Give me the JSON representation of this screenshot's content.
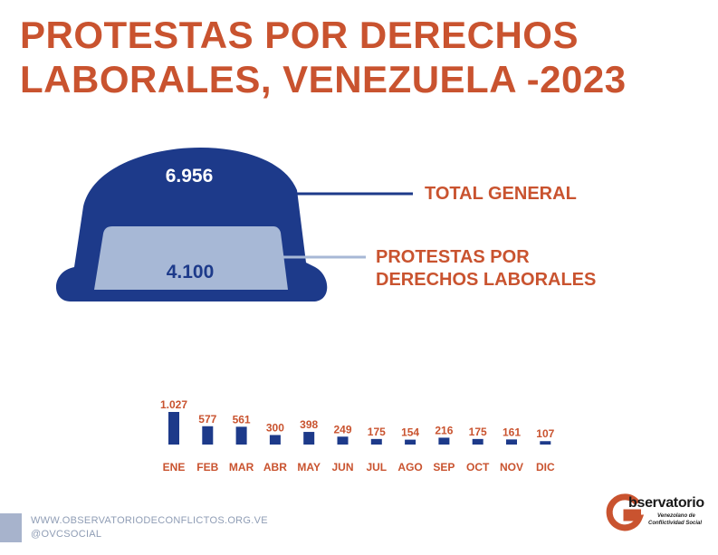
{
  "title_lines": [
    "PROTESTAS POR DERECHOS",
    "LABORALES, VENEZUELA -2023"
  ],
  "colors": {
    "accent": "#c9532f",
    "navy": "#1d3a8a",
    "light_blue": "#a7b8d6",
    "footer": "#8f9db5"
  },
  "summary": {
    "total_value": "6.956",
    "total_label": "TOTAL GENERAL",
    "labor_value": "4.100",
    "labor_label_lines": [
      "PROTESTAS POR",
      "DERECHOS LABORALES"
    ]
  },
  "chart_data": {
    "type": "bar",
    "categories": [
      "ENE",
      "FEB",
      "MAR",
      "ABR",
      "MAY",
      "JUN",
      "JUL",
      "AGO",
      "SEP",
      "OCT",
      "NOV",
      "DIC"
    ],
    "values": [
      1027,
      577,
      561,
      300,
      398,
      249,
      175,
      154,
      216,
      175,
      161,
      107
    ],
    "value_labels": [
      "1.027",
      "577",
      "561",
      "300",
      "398",
      "249",
      "175",
      "154",
      "216",
      "175",
      "161",
      "107"
    ],
    "xlabel": "",
    "ylabel": "",
    "grid": false
  },
  "footer": {
    "website": "WWW.OBSERVATORIODECONFLICTOS.ORG.VE",
    "social": "@OVCSOCIAL"
  },
  "logo": {
    "word": "bservatorio",
    "sub_line1": "Venezolano de",
    "sub_line2": "Conflictividad Social"
  }
}
